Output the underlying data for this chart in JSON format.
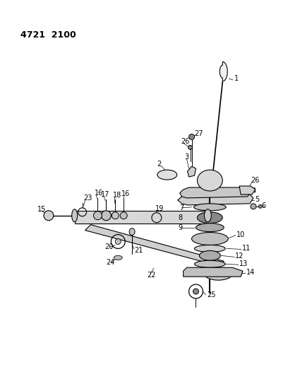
{
  "title": "4721  2100",
  "background_color": "#ffffff",
  "line_color": "#000000",
  "fig_width": 4.08,
  "fig_height": 5.33,
  "dpi": 100
}
